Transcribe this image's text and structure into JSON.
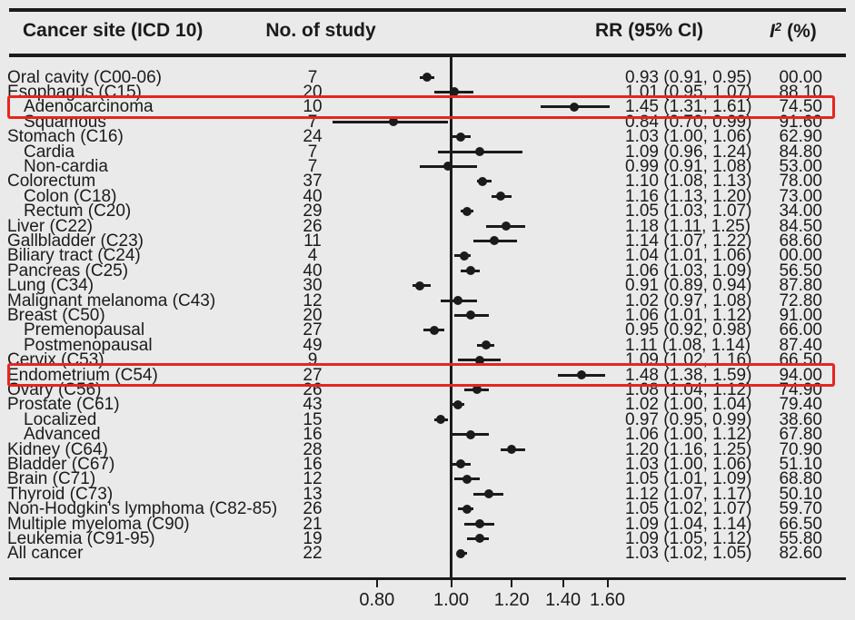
{
  "colors": {
    "background": "#eaeaea",
    "ink": "#1b1b1b",
    "highlight": "#e5261f"
  },
  "header": {
    "site": "Cancer site (ICD 10)",
    "n_study": "No. of study",
    "rr": "RR (95% CI)",
    "i2_italic": "I",
    "i2_sup": "2",
    "i2_rest": "(%)"
  },
  "chart_data": {
    "type": "forest",
    "title": "",
    "columns": {
      "site": "Cancer site (ICD 10)",
      "n": "No. of study",
      "rr": "RR (95% CI)",
      "i2": "I² (%)"
    },
    "x_axis": {
      "scale": "log",
      "tick_values": [
        0.8,
        1.0,
        1.2,
        1.4,
        1.6
      ],
      "ticks": [
        "0.80",
        "1.00",
        "1.20",
        "1.40",
        "1.60"
      ],
      "reference_line": 1.0,
      "range": [
        0.7,
        1.61
      ],
      "grid": false
    },
    "legend": null,
    "rows": [
      {
        "site": "Oral cavity (C00-06)",
        "indent": false,
        "n": "7",
        "rr": 0.93,
        "lo": 0.91,
        "hi": 0.95,
        "i2": "00.00",
        "highlight": false
      },
      {
        "site": "Esophagus (C15)",
        "indent": false,
        "n": "20",
        "rr": 1.01,
        "lo": 0.95,
        "hi": 1.07,
        "i2": "88.10",
        "highlight": false
      },
      {
        "site": "Adenocarcinoma",
        "indent": true,
        "n": "10",
        "rr": 1.45,
        "lo": 1.31,
        "hi": 1.61,
        "i2": "74.50",
        "highlight": true
      },
      {
        "site": "Squamous",
        "indent": true,
        "n": "7",
        "rr": 0.84,
        "lo": 0.7,
        "hi": 0.99,
        "i2": "91.60",
        "highlight": false
      },
      {
        "site": "Stomach (C16)",
        "indent": false,
        "n": "24",
        "rr": 1.03,
        "lo": 1.0,
        "hi": 1.06,
        "i2": "62.90",
        "highlight": false
      },
      {
        "site": "Cardia",
        "indent": true,
        "n": "7",
        "rr": 1.09,
        "lo": 0.96,
        "hi": 1.24,
        "i2": "84.80",
        "highlight": false
      },
      {
        "site": "Non-cardia",
        "indent": true,
        "n": "7",
        "rr": 0.99,
        "lo": 0.91,
        "hi": 1.08,
        "i2": "53.00",
        "highlight": false
      },
      {
        "site": "Colorectum",
        "indent": false,
        "n": "37",
        "rr": 1.1,
        "lo": 1.08,
        "hi": 1.13,
        "i2": "78.00",
        "highlight": false
      },
      {
        "site": "Colon (C18)",
        "indent": true,
        "n": "40",
        "rr": 1.16,
        "lo": 1.13,
        "hi": 1.2,
        "i2": "73.00",
        "highlight": false
      },
      {
        "site": "Rectum (C20)",
        "indent": true,
        "n": "29",
        "rr": 1.05,
        "lo": 1.03,
        "hi": 1.07,
        "i2": "34.00",
        "highlight": false
      },
      {
        "site": "Liver (C22)",
        "indent": false,
        "n": "26",
        "rr": 1.18,
        "lo": 1.11,
        "hi": 1.25,
        "i2": "84.50",
        "highlight": false
      },
      {
        "site": "Gallbladder (C23)",
        "indent": false,
        "n": "11",
        "rr": 1.14,
        "lo": 1.07,
        "hi": 1.22,
        "i2": "68.60",
        "highlight": false
      },
      {
        "site": "Biliary tract (C24)",
        "indent": false,
        "n": "4",
        "rr": 1.04,
        "lo": 1.01,
        "hi": 1.06,
        "i2": "00.00",
        "highlight": false
      },
      {
        "site": "Pancreas (C25)",
        "indent": false,
        "n": "40",
        "rr": 1.06,
        "lo": 1.03,
        "hi": 1.09,
        "i2": "56.50",
        "highlight": false
      },
      {
        "site": "Lung (C34)",
        "indent": false,
        "n": "30",
        "rr": 0.91,
        "lo": 0.89,
        "hi": 0.94,
        "i2": "87.80",
        "highlight": false
      },
      {
        "site": "Malignant melanoma (C43)",
        "indent": false,
        "n": "12",
        "rr": 1.02,
        "lo": 0.97,
        "hi": 1.08,
        "i2": "72.80",
        "highlight": false
      },
      {
        "site": "Breast (C50)",
        "indent": false,
        "n": "20",
        "rr": 1.06,
        "lo": 1.01,
        "hi": 1.12,
        "i2": "91.00",
        "highlight": false
      },
      {
        "site": "Premenopausal",
        "indent": true,
        "n": "27",
        "rr": 0.95,
        "lo": 0.92,
        "hi": 0.98,
        "i2": "66.00",
        "highlight": false
      },
      {
        "site": "Postmenopausal",
        "indent": true,
        "n": "49",
        "rr": 1.11,
        "lo": 1.08,
        "hi": 1.14,
        "i2": "87.40",
        "highlight": false
      },
      {
        "site": "Cervix (C53)",
        "indent": false,
        "n": "9",
        "rr": 1.09,
        "lo": 1.02,
        "hi": 1.16,
        "i2": "66.50",
        "highlight": false
      },
      {
        "site": "Endometrium (C54)",
        "indent": false,
        "n": "27",
        "rr": 1.48,
        "lo": 1.38,
        "hi": 1.59,
        "i2": "94.00",
        "highlight": true
      },
      {
        "site": "Ovary (C56)",
        "indent": false,
        "n": "26",
        "rr": 1.08,
        "lo": 1.04,
        "hi": 1.12,
        "i2": "74.90",
        "highlight": false
      },
      {
        "site": "Prostate (C61)",
        "indent": false,
        "n": "43",
        "rr": 1.02,
        "lo": 1.0,
        "hi": 1.04,
        "i2": "79.40",
        "highlight": false
      },
      {
        "site": "Localized",
        "indent": true,
        "n": "15",
        "rr": 0.97,
        "lo": 0.95,
        "hi": 0.99,
        "i2": "38.60",
        "highlight": false
      },
      {
        "site": "Advanced",
        "indent": true,
        "n": "16",
        "rr": 1.06,
        "lo": 1.0,
        "hi": 1.12,
        "i2": "67.80",
        "highlight": false
      },
      {
        "site": "Kidney (C64)",
        "indent": false,
        "n": "28",
        "rr": 1.2,
        "lo": 1.16,
        "hi": 1.25,
        "i2": "70.90",
        "highlight": false
      },
      {
        "site": "Bladder (C67)",
        "indent": false,
        "n": "16",
        "rr": 1.03,
        "lo": 1.0,
        "hi": 1.06,
        "i2": "51.10",
        "highlight": false
      },
      {
        "site": "Brain (C71)",
        "indent": false,
        "n": "12",
        "rr": 1.05,
        "lo": 1.01,
        "hi": 1.09,
        "i2": "68.80",
        "highlight": false
      },
      {
        "site": "Thyroid (C73)",
        "indent": false,
        "n": "13",
        "rr": 1.12,
        "lo": 1.07,
        "hi": 1.17,
        "i2": "50.10",
        "highlight": false
      },
      {
        "site": "Non-Hodgkin's lymphoma (C82-85)",
        "indent": false,
        "n": "26",
        "rr": 1.05,
        "lo": 1.02,
        "hi": 1.07,
        "i2": "59.70",
        "highlight": false
      },
      {
        "site": "Multiple myeloma (C90)",
        "indent": false,
        "n": "21",
        "rr": 1.09,
        "lo": 1.04,
        "hi": 1.14,
        "i2": "66.50",
        "highlight": false
      },
      {
        "site": "Leukemia (C91-95)",
        "indent": false,
        "n": "19",
        "rr": 1.09,
        "lo": 1.05,
        "hi": 1.12,
        "i2": "55.80",
        "highlight": false
      },
      {
        "site": "All cancer",
        "indent": false,
        "n": "22",
        "rr": 1.03,
        "lo": 1.02,
        "hi": 1.05,
        "i2": "82.60",
        "highlight": false
      }
    ]
  }
}
